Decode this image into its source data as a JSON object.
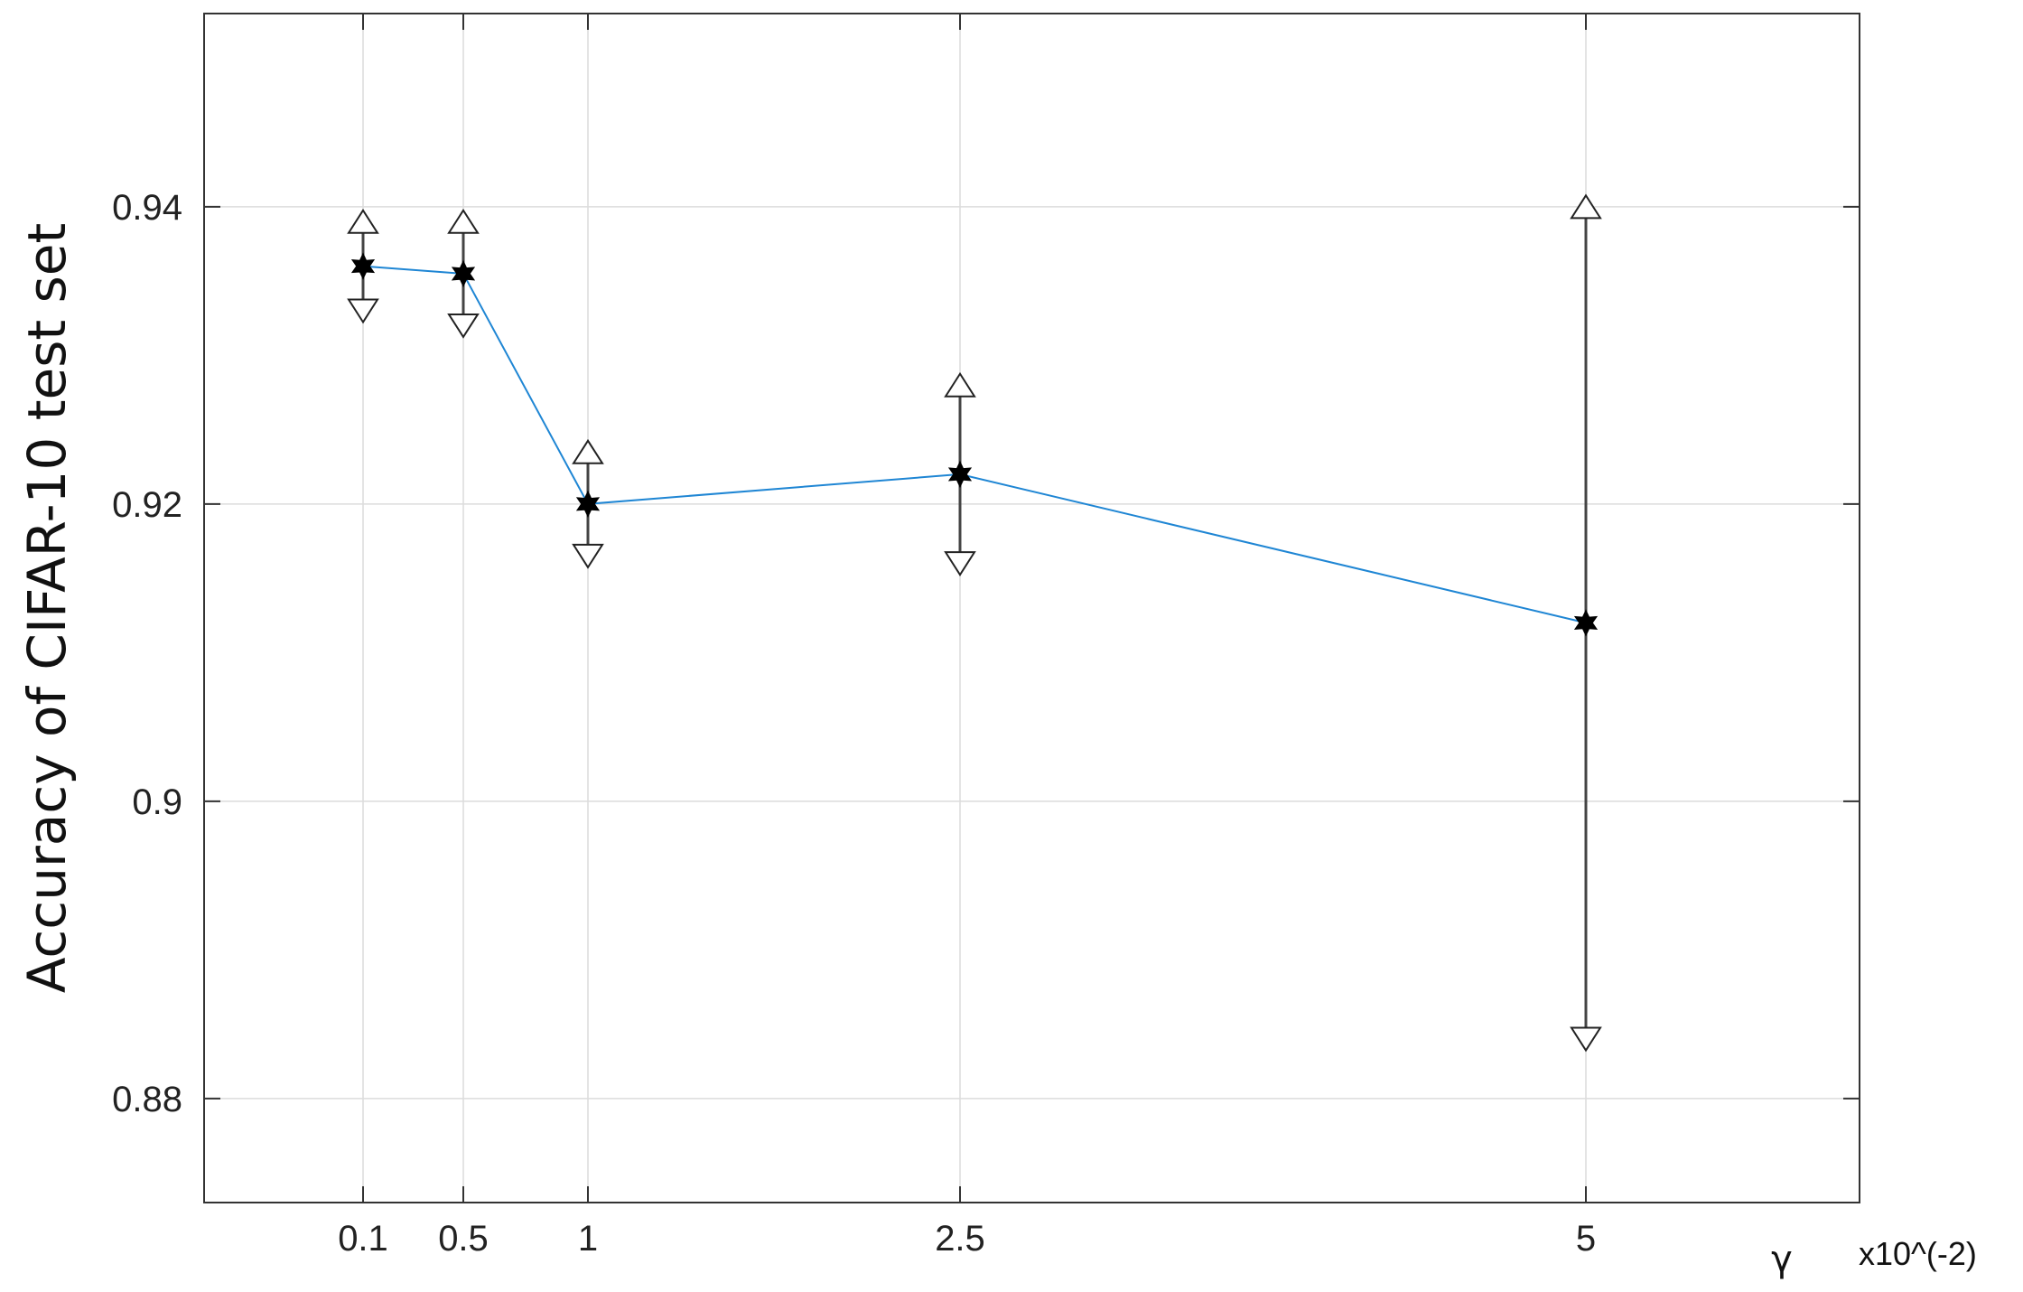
{
  "chart_data": {
    "type": "line",
    "xlabel": "γ",
    "x_multiplier": "x10^(-2)",
    "ylabel": "Accuracy of CIFAR-10 test set",
    "ylim": [
      0.873,
      0.953
    ],
    "x_tick_labels": [
      "0.1",
      "0.5",
      "1",
      "2.5",
      "5"
    ],
    "y_ticks": [
      0.88,
      0.9,
      0.92,
      0.94
    ],
    "y_tick_labels": [
      "0.88",
      "0.9",
      "0.92",
      "0.94"
    ],
    "grid": true,
    "x": [
      0.1,
      0.5,
      1,
      2.5,
      5
    ],
    "series": [
      {
        "values": [
          0.936,
          0.9355,
          0.92,
          0.922,
          0.912
        ],
        "upper": [
          0.939,
          0.939,
          0.9235,
          0.928,
          0.94
        ],
        "lower": [
          0.933,
          0.932,
          0.9165,
          0.916,
          0.884
        ],
        "color": "#1f86d4"
      }
    ]
  }
}
